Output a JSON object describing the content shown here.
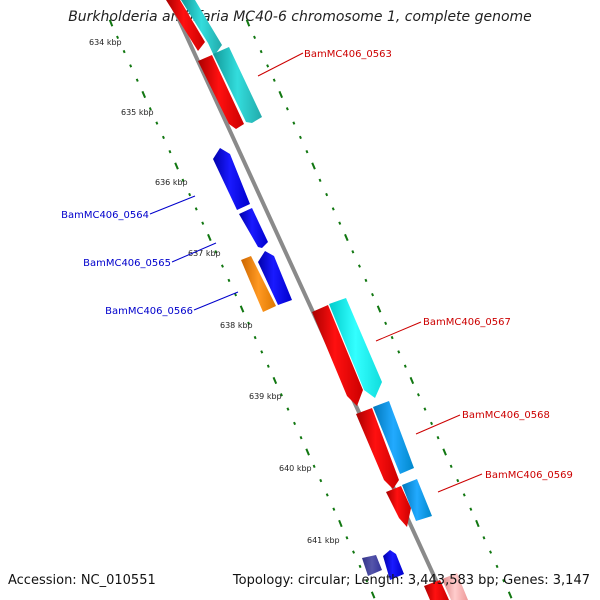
{
  "title": "Burkholderia ambifaria MC40-6 chromosome 1, complete genome",
  "accession_label": "Accession: NC_010551",
  "summary_label": "Topology: circular; Length: 3,443,583 bp; Genes: 3,147",
  "ticks": [
    {
      "label": "634 kbp",
      "kbp": 634
    },
    {
      "label": "635 kbp",
      "kbp": 635
    },
    {
      "label": "636 kbp",
      "kbp": 636
    },
    {
      "label": "637 kbp",
      "kbp": 637
    },
    {
      "label": "638 kbp",
      "kbp": 638
    },
    {
      "label": "639 kbp",
      "kbp": 639
    },
    {
      "label": "640 kbp",
      "kbp": 640
    },
    {
      "label": "641 kbp",
      "kbp": 641
    }
  ],
  "gene_labels": [
    {
      "text": "BamMC406_0563",
      "color": "#cc0000"
    },
    {
      "text": "BamMC406_0564",
      "color": "#0000cc"
    },
    {
      "text": "BamMC406_0565",
      "color": "#0000cc"
    },
    {
      "text": "BamMC406_0566",
      "color": "#0000cc"
    },
    {
      "text": "BamMC406_0567",
      "color": "#cc0000"
    },
    {
      "text": "BamMC406_0568",
      "color": "#cc0000"
    },
    {
      "text": "BamMC406_0569",
      "color": "#cc0000"
    }
  ],
  "colors": {
    "forward_gene": "#ff0000",
    "reverse_gene": "#0000ee",
    "forward_cds": "#22cccc",
    "reverse_cds": "#0099ee",
    "orange_gene": "#ff8800",
    "backbone": "#888888",
    "tick": "#117711"
  }
}
